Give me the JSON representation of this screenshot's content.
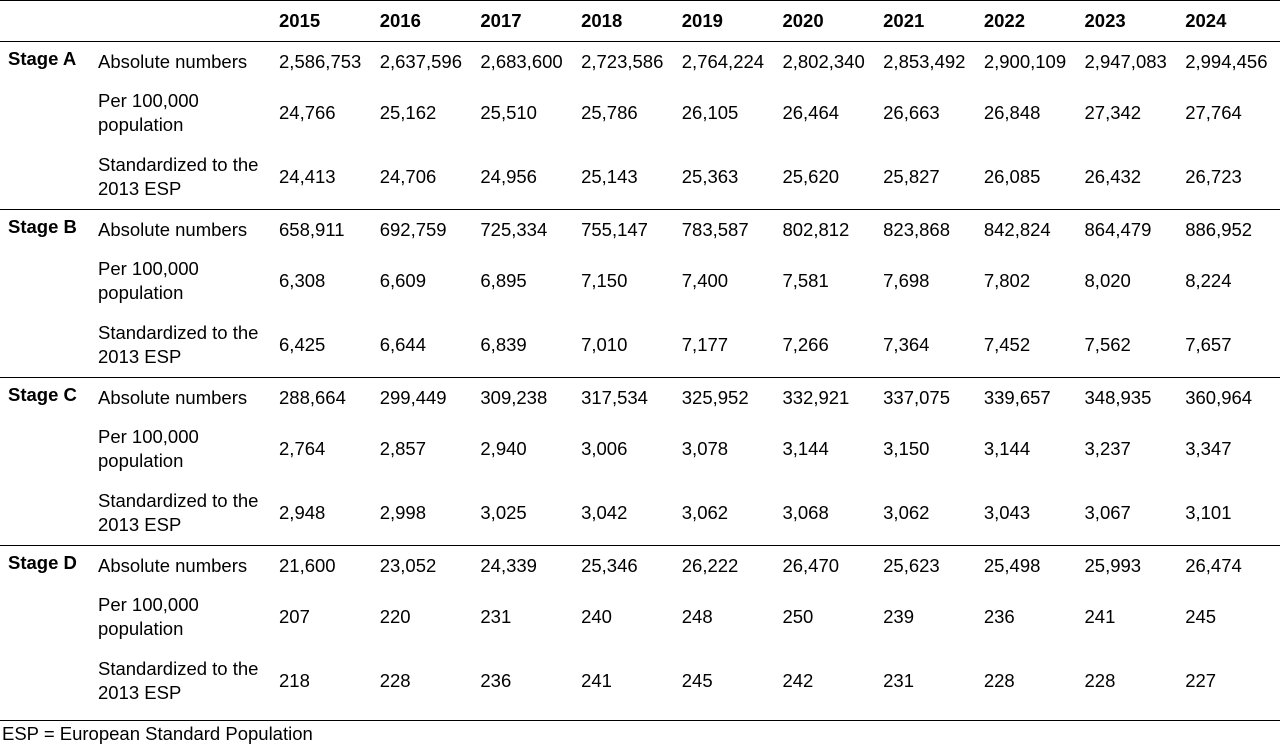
{
  "table": {
    "years": [
      "2015",
      "2016",
      "2017",
      "2018",
      "2019",
      "2020",
      "2021",
      "2022",
      "2023",
      "2024"
    ],
    "groups": [
      {
        "stage": "Stage A",
        "rows": [
          {
            "measure": "Absolute numbers",
            "values": [
              "2,586,753",
              "2,637,596",
              "2,683,600",
              "2,723,586",
              "2,764,224",
              "2,802,340",
              "2,853,492",
              "2,900,109",
              "2,947,083",
              "2,994,456"
            ]
          },
          {
            "measure": "Per 100,000 population",
            "values": [
              "24,766",
              "25,162",
              "25,510",
              "25,786",
              "26,105",
              "26,464",
              "26,663",
              "26,848",
              "27,342",
              "27,764"
            ]
          },
          {
            "measure": "Standardized to the 2013 ESP",
            "values": [
              "24,413",
              "24,706",
              "24,956",
              "25,143",
              "25,363",
              "25,620",
              "25,827",
              "26,085",
              "26,432",
              "26,723"
            ]
          }
        ]
      },
      {
        "stage": "Stage B",
        "rows": [
          {
            "measure": "Absolute numbers",
            "values": [
              "658,911",
              "692,759",
              "725,334",
              "755,147",
              "783,587",
              "802,812",
              "823,868",
              "842,824",
              "864,479",
              "886,952"
            ]
          },
          {
            "measure": "Per 100,000 population",
            "values": [
              "6,308",
              "6,609",
              "6,895",
              "7,150",
              "7,400",
              "7,581",
              "7,698",
              "7,802",
              "8,020",
              "8,224"
            ]
          },
          {
            "measure": "Standardized to the 2013 ESP",
            "values": [
              "6,425",
              "6,644",
              "6,839",
              "7,010",
              "7,177",
              "7,266",
              "7,364",
              "7,452",
              "7,562",
              "7,657"
            ]
          }
        ]
      },
      {
        "stage": "Stage C",
        "rows": [
          {
            "measure": "Absolute numbers",
            "values": [
              "288,664",
              "299,449",
              "309,238",
              "317,534",
              "325,952",
              "332,921",
              "337,075",
              "339,657",
              "348,935",
              "360,964"
            ]
          },
          {
            "measure": "Per 100,000 population",
            "values": [
              "2,764",
              "2,857",
              "2,940",
              "3,006",
              "3,078",
              "3,144",
              "3,150",
              "3,144",
              "3,237",
              "3,347"
            ]
          },
          {
            "measure": "Standardized to the 2013 ESP",
            "values": [
              "2,948",
              "2,998",
              "3,025",
              "3,042",
              "3,062",
              "3,068",
              "3,062",
              "3,043",
              "3,067",
              "3,101"
            ]
          }
        ]
      },
      {
        "stage": "Stage D",
        "rows": [
          {
            "measure": "Absolute numbers",
            "values": [
              "21,600",
              "23,052",
              "24,339",
              "25,346",
              "26,222",
              "26,470",
              "25,623",
              "25,498",
              "25,993",
              "26,474"
            ]
          },
          {
            "measure": "Per 100,000 population",
            "values": [
              "207",
              "220",
              "231",
              "240",
              "248",
              "250",
              "239",
              "236",
              "241",
              "245"
            ]
          },
          {
            "measure": "Standardized to the 2013 ESP",
            "values": [
              "218",
              "228",
              "236",
              "241",
              "245",
              "242",
              "231",
              "228",
              "228",
              "227"
            ]
          }
        ]
      }
    ]
  },
  "footnote": "ESP = European Standard Population"
}
